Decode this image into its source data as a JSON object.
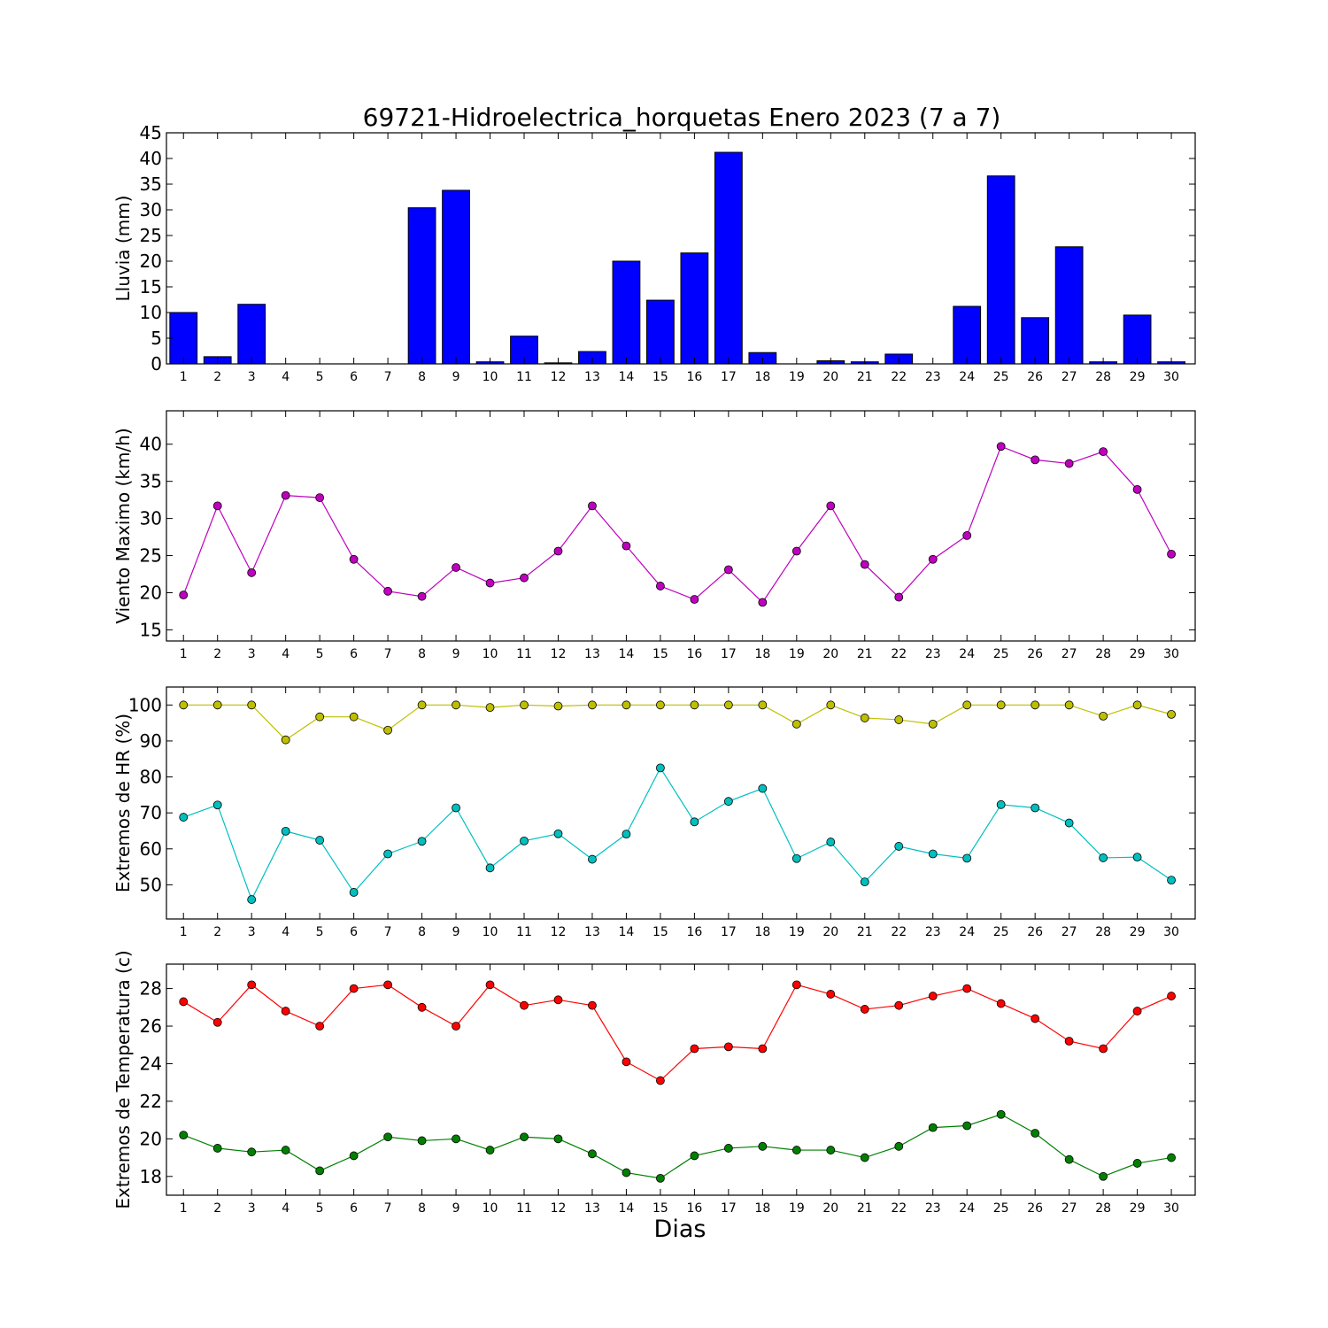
{
  "figure": {
    "title": "69721-Hidroelectrica_horquetas Enero 2023  (7 a 7)",
    "xlabel": "Dias"
  },
  "chart_data": [
    {
      "type": "bar",
      "ylabel": "Lluvia (mm)",
      "ylim": [
        0,
        45
      ],
      "yticks": [
        0,
        5,
        10,
        15,
        20,
        25,
        30,
        35,
        40,
        45
      ],
      "x": [
        1,
        2,
        3,
        4,
        5,
        6,
        7,
        8,
        9,
        10,
        11,
        12,
        13,
        14,
        15,
        16,
        17,
        18,
        19,
        20,
        21,
        22,
        23,
        24,
        25,
        26,
        27,
        28,
        29,
        30
      ],
      "series": [
        {
          "color": "#0000ff",
          "values": [
            10,
            1.4,
            11.6,
            0,
            0,
            0,
            0,
            30.4,
            33.8,
            0.4,
            5.4,
            0.2,
            2.4,
            20,
            12.4,
            21.6,
            41.2,
            2.2,
            0,
            0.6,
            0.4,
            1.9,
            0,
            11.2,
            36.6,
            9,
            22.8,
            0.4,
            9.5,
            0.4
          ]
        }
      ]
    },
    {
      "type": "line",
      "ylabel": "Viento Maximo (km/h)",
      "ylim": [
        13.5,
        44.5
      ],
      "yticks": [
        15,
        20,
        25,
        30,
        35,
        40
      ],
      "x": [
        1,
        2,
        3,
        4,
        5,
        6,
        7,
        8,
        9,
        10,
        11,
        12,
        13,
        14,
        15,
        16,
        17,
        18,
        19,
        20,
        21,
        22,
        23,
        24,
        25,
        26,
        27,
        28,
        29,
        30
      ],
      "series": [
        {
          "color": "#bf00bf",
          "values": [
            19.7,
            31.7,
            22.7,
            33.1,
            32.8,
            24.5,
            20.2,
            19.5,
            23.4,
            21.3,
            22.0,
            25.6,
            31.7,
            26.3,
            20.9,
            19.1,
            23.1,
            18.7,
            25.6,
            31.7,
            23.8,
            19.4,
            24.5,
            27.7,
            39.7,
            37.9,
            37.4,
            39.0,
            33.9,
            25.2
          ]
        }
      ]
    },
    {
      "type": "line",
      "ylabel": "Extremos de HR (%)",
      "ylim": [
        40.5,
        105
      ],
      "yticks": [
        50,
        60,
        70,
        80,
        90,
        100
      ],
      "x": [
        1,
        2,
        3,
        4,
        5,
        6,
        7,
        8,
        9,
        10,
        11,
        12,
        13,
        14,
        15,
        16,
        17,
        18,
        19,
        20,
        21,
        22,
        23,
        24,
        25,
        26,
        27,
        28,
        29,
        30
      ],
      "series": [
        {
          "color": "#bfbf00",
          "values": [
            100,
            100,
            100,
            90.3,
            96.7,
            96.7,
            93,
            100,
            100,
            99.3,
            100,
            99.7,
            100,
            100,
            100,
            100,
            100,
            100,
            94.7,
            100,
            96.4,
            95.9,
            94.7,
            100,
            100,
            100,
            100,
            96.9,
            100,
            97.4
          ]
        },
        {
          "color": "#00bfbf",
          "values": [
            68.8,
            72.2,
            45.9,
            64.9,
            62.4,
            47.9,
            58.6,
            62.1,
            71.4,
            54.7,
            62.2,
            64.2,
            57.1,
            64.1,
            82.5,
            67.5,
            73.2,
            76.8,
            57.3,
            61.9,
            50.8,
            60.7,
            58.6,
            57.4,
            72.3,
            71.4,
            67.2,
            57.5,
            57.7,
            51.3
          ]
        }
      ]
    },
    {
      "type": "line",
      "ylabel": "Extremos de Temperatura (c)",
      "ylim": [
        17,
        29.3
      ],
      "yticks": [
        18,
        20,
        22,
        24,
        26,
        28
      ],
      "x": [
        1,
        2,
        3,
        4,
        5,
        6,
        7,
        8,
        9,
        10,
        11,
        12,
        13,
        14,
        15,
        16,
        17,
        18,
        19,
        20,
        21,
        22,
        23,
        24,
        25,
        26,
        27,
        28,
        29,
        30
      ],
      "series": [
        {
          "color": "#ff0000",
          "values": [
            27.3,
            26.2,
            28.2,
            26.8,
            26.0,
            28.0,
            28.2,
            27.0,
            26.0,
            28.2,
            27.1,
            27.4,
            27.1,
            24.1,
            23.1,
            24.8,
            24.9,
            24.8,
            28.2,
            27.7,
            26.9,
            27.1,
            27.6,
            28.0,
            27.2,
            26.4,
            25.2,
            24.8,
            26.8,
            27.6
          ]
        },
        {
          "color": "#008000",
          "values": [
            20.2,
            19.5,
            19.3,
            19.4,
            18.3,
            19.1,
            20.1,
            19.9,
            20.0,
            19.4,
            20.1,
            20.0,
            19.2,
            18.2,
            17.9,
            19.1,
            19.5,
            19.6,
            19.4,
            19.4,
            19.0,
            19.6,
            20.6,
            20.7,
            21.3,
            20.3,
            18.9,
            18.0,
            18.7,
            19.0
          ]
        }
      ]
    }
  ]
}
